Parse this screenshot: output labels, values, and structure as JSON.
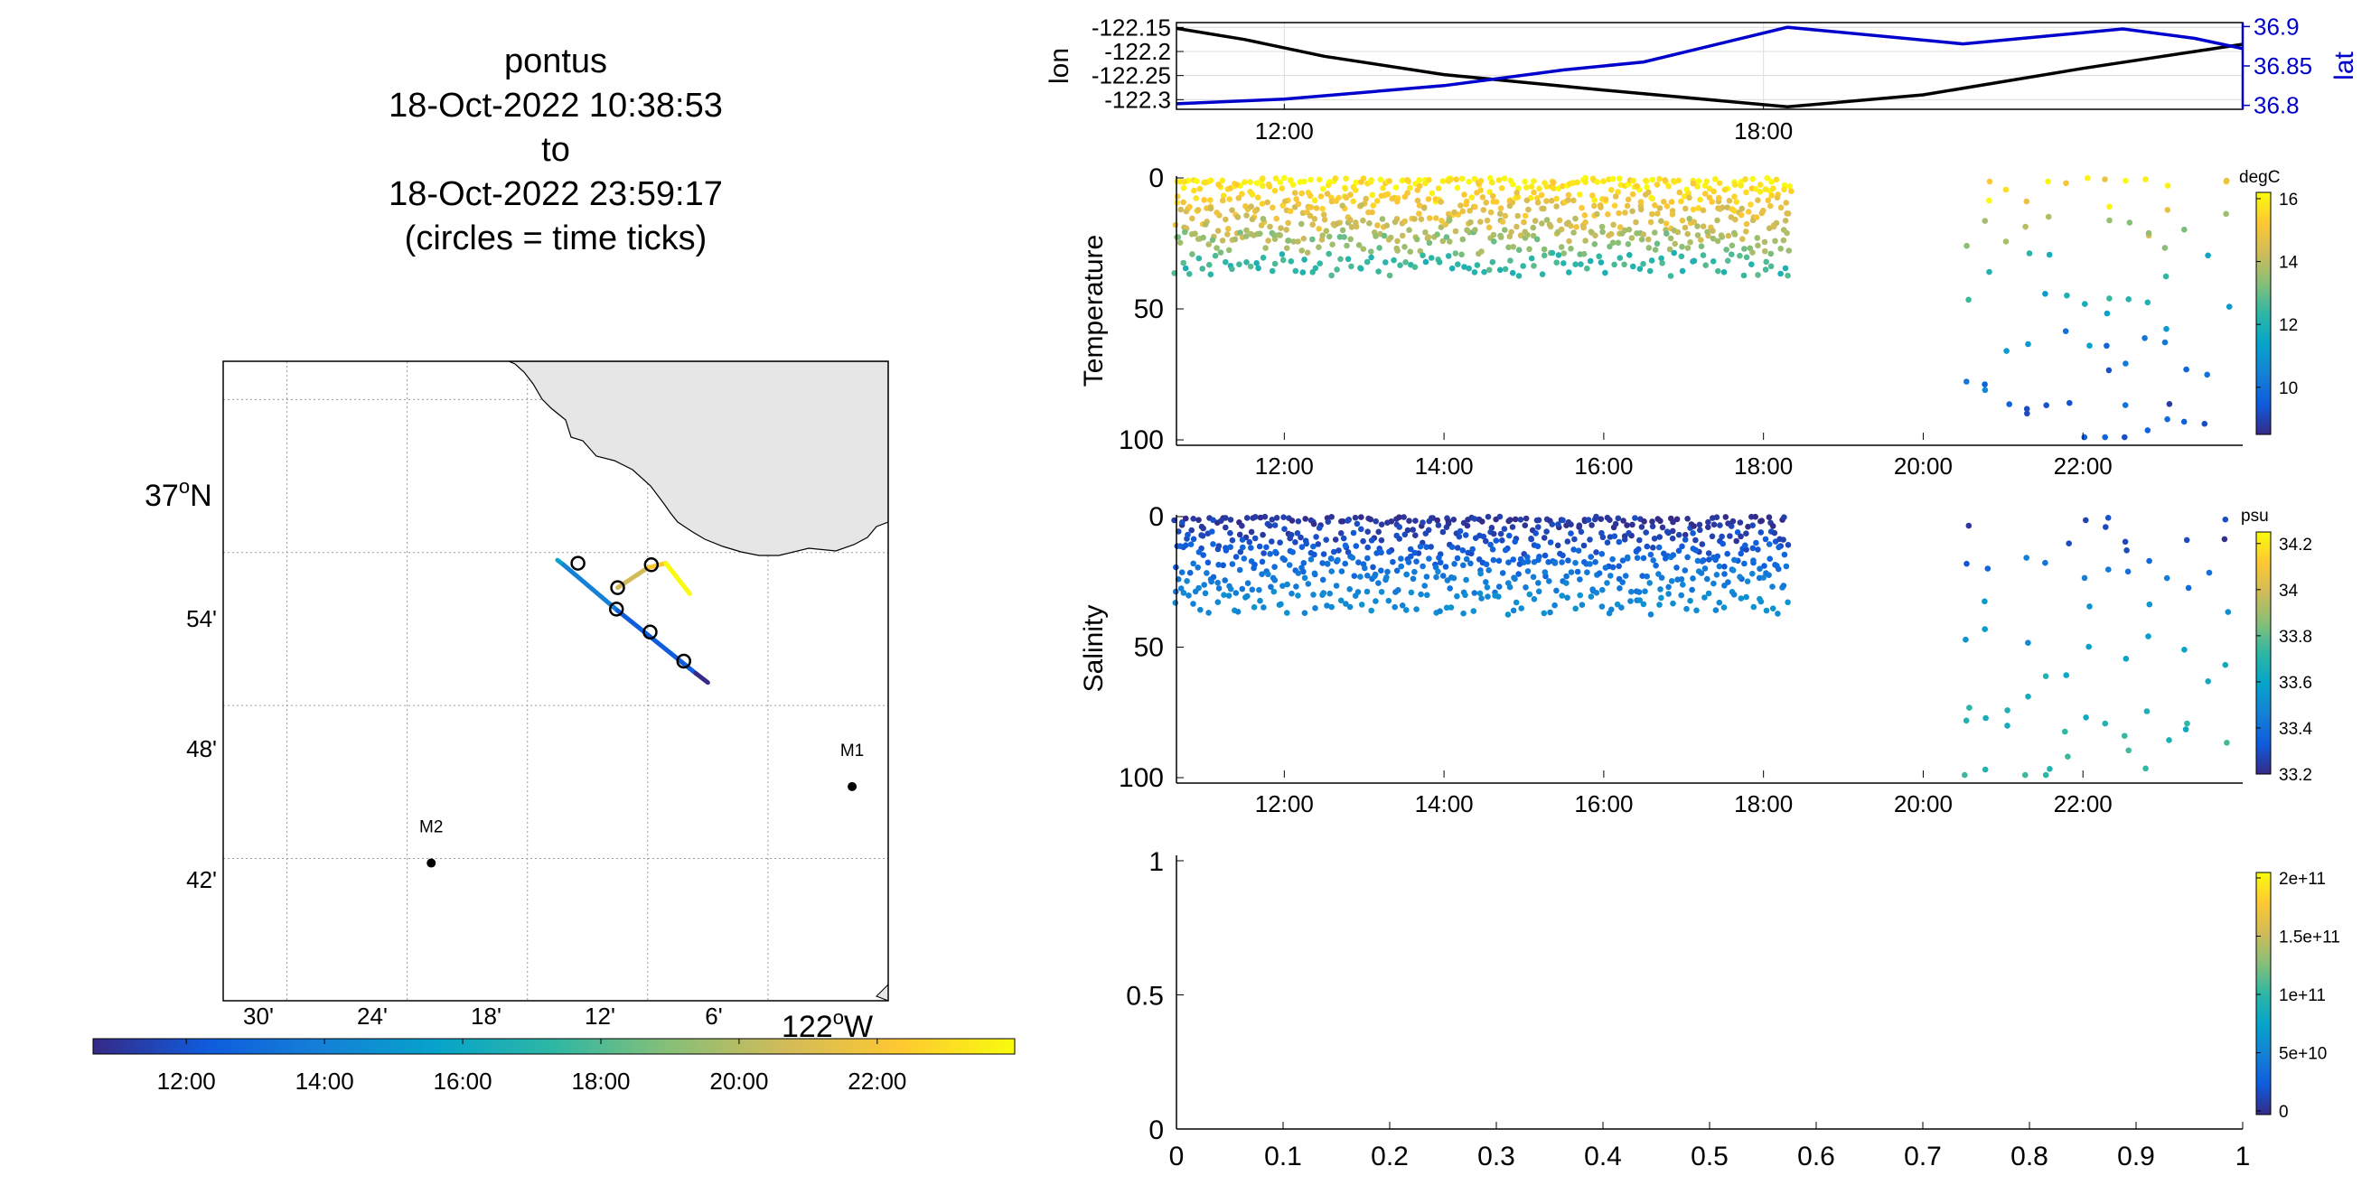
{
  "title_block": {
    "line1": "pontus",
    "line2": "18-Oct-2022 10:38:53",
    "line3": "to",
    "line4": "18-Oct-2022 23:59:17",
    "line5": "(circles = time ticks)"
  },
  "colors": {
    "land": "#e6e6e6",
    "track_black": "#000000",
    "track_blue": "#0000cc",
    "parula": [
      "#352a87",
      "#0f5cdd",
      "#1481d6",
      "#06a4ca",
      "#2eb7a4",
      "#87bf77",
      "#d1bb59",
      "#fec832",
      "#f9fb0e"
    ]
  },
  "map": {
    "lat_labels": [
      "37",
      "N",
      "54'",
      "48'",
      "42'"
    ],
    "lon_labels": [
      "30'",
      "24'",
      "18'",
      "12'",
      "6'",
      "122",
      "W"
    ],
    "stations": [
      {
        "name": "M1",
        "lon": -122.03,
        "lat": 36.747
      },
      {
        "name": "M2",
        "lon": -122.38,
        "lat": 36.697
      }
    ],
    "track_segments": [
      {
        "lon1": -122.275,
        "lat1": 36.895,
        "lon2": -122.27,
        "lat2": 36.892,
        "color": "#06a4ca"
      },
      {
        "lon1": -122.27,
        "lat1": 36.892,
        "lon2": -122.225,
        "lat2": 36.862,
        "color": "#1481d6"
      },
      {
        "lon1": -122.225,
        "lat1": 36.862,
        "lon2": -122.16,
        "lat2": 36.821,
        "color": "#0f5cdd"
      },
      {
        "lon1": -122.16,
        "lat1": 36.821,
        "lon2": -122.15,
        "lat2": 36.815,
        "color": "#352a87"
      },
      {
        "lon1": -122.225,
        "lat1": 36.877,
        "lon2": -122.2,
        "lat2": 36.89,
        "color": "#d1bb59"
      },
      {
        "lon1": -122.2,
        "lat1": 36.89,
        "lon2": -122.185,
        "lat2": 36.893,
        "color": "#fec832"
      },
      {
        "lon1": -122.185,
        "lat1": 36.893,
        "lon2": -122.165,
        "lat2": 36.873,
        "color": "#f9fb0e"
      }
    ],
    "time_ticks": [
      {
        "lon": -122.258,
        "lat": 36.893
      },
      {
        "lon": -122.225,
        "lat": 36.877
      },
      {
        "lon": -122.197,
        "lat": 36.892
      },
      {
        "lon": -122.226,
        "lat": 36.863
      },
      {
        "lon": -122.198,
        "lat": 36.848
      },
      {
        "lon": -122.17,
        "lat": 36.829
      }
    ]
  },
  "map_colorbar": {
    "ticks": [
      "12:00",
      "14:00",
      "16:00",
      "18:00",
      "20:00",
      "22:00"
    ]
  },
  "chart_data": [
    {
      "type": "line",
      "ylabel": "lon",
      "ylabel_right": "lat",
      "yticks_left": [
        "-122.15",
        "-122.2",
        "-122.25",
        "-122.3"
      ],
      "yticks_right": [
        "36.9",
        "36.85",
        "36.8"
      ],
      "xticks": [
        "12:00",
        "18:00"
      ],
      "ylim_left": [
        -122.32,
        -122.14
      ],
      "ylim_right": [
        36.795,
        36.905
      ],
      "xlim_hours": [
        10.65,
        24.0
      ],
      "grid": true,
      "series": [
        {
          "axis": "left",
          "color": "#000000",
          "x": [
            10.65,
            11.5,
            12.5,
            14.0,
            16.0,
            18.3,
            20.0,
            22.0,
            23.4,
            24.0
          ],
          "y": [
            -122.152,
            -122.175,
            -122.21,
            -122.248,
            -122.28,
            -122.315,
            -122.29,
            -122.235,
            -122.2,
            -122.185
          ]
        },
        {
          "axis": "right",
          "color": "#0000cc",
          "x": [
            10.65,
            12.0,
            14.0,
            15.5,
            16.5,
            18.3,
            20.5,
            22.5,
            23.4,
            24.0
          ],
          "y": [
            36.802,
            36.808,
            36.825,
            36.845,
            36.855,
            36.899,
            36.878,
            36.897,
            36.885,
            36.872
          ]
        }
      ]
    },
    {
      "type": "scatter",
      "ylabel": "Temperature",
      "yticks": [
        "0",
        "50",
        "100"
      ],
      "ylim": [
        0,
        100
      ],
      "xticks": [
        "12:00",
        "14:00",
        "16:00",
        "18:00",
        "20:00",
        "22:00"
      ],
      "xlim_hours": [
        10.65,
        24.0
      ],
      "colorbar_label": "degC",
      "colorbar_ticks": [
        "16",
        "14",
        "12",
        "10"
      ],
      "clim": [
        8.5,
        16.2
      ],
      "segments": [
        {
          "x_start": 10.65,
          "x_end": 18.35,
          "step": 0.065,
          "depths": [
            0,
            5,
            10,
            15,
            20,
            25,
            33
          ],
          "temps": [
            16.0,
            15.6,
            15.0,
            14.6,
            14.0,
            13.4,
            12.4
          ]
        },
        {
          "x_start": 20.55,
          "x_end": 23.95,
          "step": 0.25,
          "depths": [
            0,
            10,
            25,
            40,
            55,
            70,
            85,
            98
          ],
          "temps": [
            15.8,
            14.8,
            13.6,
            12.0,
            11.0,
            10.2,
            9.6,
            9.2
          ]
        }
      ]
    },
    {
      "type": "scatter",
      "ylabel": "Salinity",
      "yticks": [
        "0",
        "50",
        "100"
      ],
      "ylim": [
        0,
        100
      ],
      "xticks": [
        "12:00",
        "14:00",
        "16:00",
        "18:00",
        "20:00",
        "22:00"
      ],
      "xlim_hours": [
        10.65,
        24.0
      ],
      "colorbar_label": "psu",
      "colorbar_ticks": [
        "34.2",
        "34",
        "33.8",
        "33.6",
        "33.4",
        "33.2"
      ],
      "clim": [
        33.2,
        34.25
      ],
      "segments": [
        {
          "x_start": 10.65,
          "x_end": 18.35,
          "step": 0.07,
          "depths": [
            0,
            5,
            10,
            15,
            20,
            25,
            33
          ],
          "sals": [
            33.22,
            33.26,
            33.3,
            33.35,
            33.4,
            33.45,
            33.5
          ]
        },
        {
          "x_start": 20.55,
          "x_end": 23.95,
          "step": 0.25,
          "depths": [
            0,
            10,
            25,
            40,
            55,
            70,
            85,
            98
          ],
          "sals": [
            33.25,
            33.32,
            33.42,
            33.52,
            33.6,
            33.66,
            33.7,
            33.72
          ]
        }
      ]
    },
    {
      "type": "scatter",
      "xticks": [
        "0",
        "0.1",
        "0.2",
        "0.3",
        "0.4",
        "0.5",
        "0.6",
        "0.7",
        "0.8",
        "0.9",
        "1"
      ],
      "yticks": [
        "1",
        "0.5",
        "0"
      ],
      "xlim": [
        0,
        1
      ],
      "ylim": [
        0,
        1
      ],
      "colorbar_ticks": [
        "2e+11",
        "1.5e+11",
        "1e+11",
        "5e+10",
        "0"
      ],
      "points": []
    }
  ]
}
